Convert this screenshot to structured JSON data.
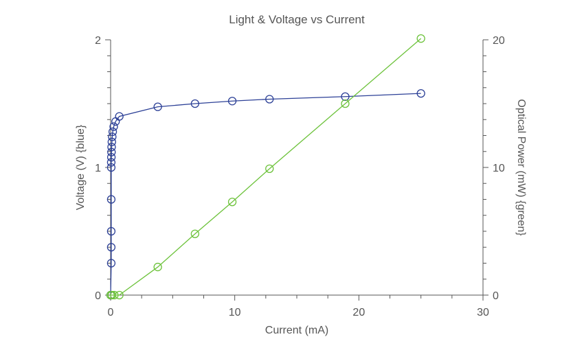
{
  "chart_data": {
    "type": "line",
    "title": "Light & Voltage vs Current",
    "xlabel": "Current (mA)",
    "ylabel_left": "Voltage (V) {blue}",
    "ylabel_right": "Optical Power (mW) {green}",
    "xlim": [
      0,
      30
    ],
    "ylim_left": [
      0,
      2
    ],
    "ylim_right": [
      0,
      20
    ],
    "x_ticks": [
      "0",
      "10",
      "20",
      "30"
    ],
    "y_left_ticks": [
      "0",
      "1",
      "2"
    ],
    "y_right_ticks": [
      "0",
      "10",
      "20"
    ],
    "grid": false,
    "legend": "none",
    "series": [
      {
        "axis": "left",
        "color": "#2b3f96",
        "marker": "open-circle",
        "points": [
          [
            0,
            0
          ],
          [
            0.05,
            0.25
          ],
          [
            0.05,
            0.375
          ],
          [
            0.05,
            0.5
          ],
          [
            0.05,
            0.75
          ],
          [
            0.05,
            1.0
          ],
          [
            0.05,
            1.04
          ],
          [
            0.06,
            1.08
          ],
          [
            0.07,
            1.12
          ],
          [
            0.08,
            1.16
          ],
          [
            0.1,
            1.2
          ],
          [
            0.13,
            1.24
          ],
          [
            0.17,
            1.28
          ],
          [
            0.25,
            1.32
          ],
          [
            0.4,
            1.36
          ],
          [
            0.7,
            1.4
          ],
          [
            3.8,
            1.475
          ],
          [
            6.8,
            1.5
          ],
          [
            9.8,
            1.52
          ],
          [
            12.8,
            1.535
          ],
          [
            18.9,
            1.555
          ],
          [
            25,
            1.58
          ]
        ]
      },
      {
        "axis": "right",
        "color": "#6cc23a",
        "marker": "open-circle",
        "points": [
          [
            0,
            0
          ],
          [
            0.1,
            0
          ],
          [
            0.3,
            0
          ],
          [
            0.7,
            0
          ],
          [
            3.8,
            2.2
          ],
          [
            6.8,
            4.8
          ],
          [
            9.8,
            7.3
          ],
          [
            12.8,
            9.9
          ],
          [
            18.9,
            15.0
          ],
          [
            25,
            20.1
          ]
        ]
      }
    ]
  }
}
